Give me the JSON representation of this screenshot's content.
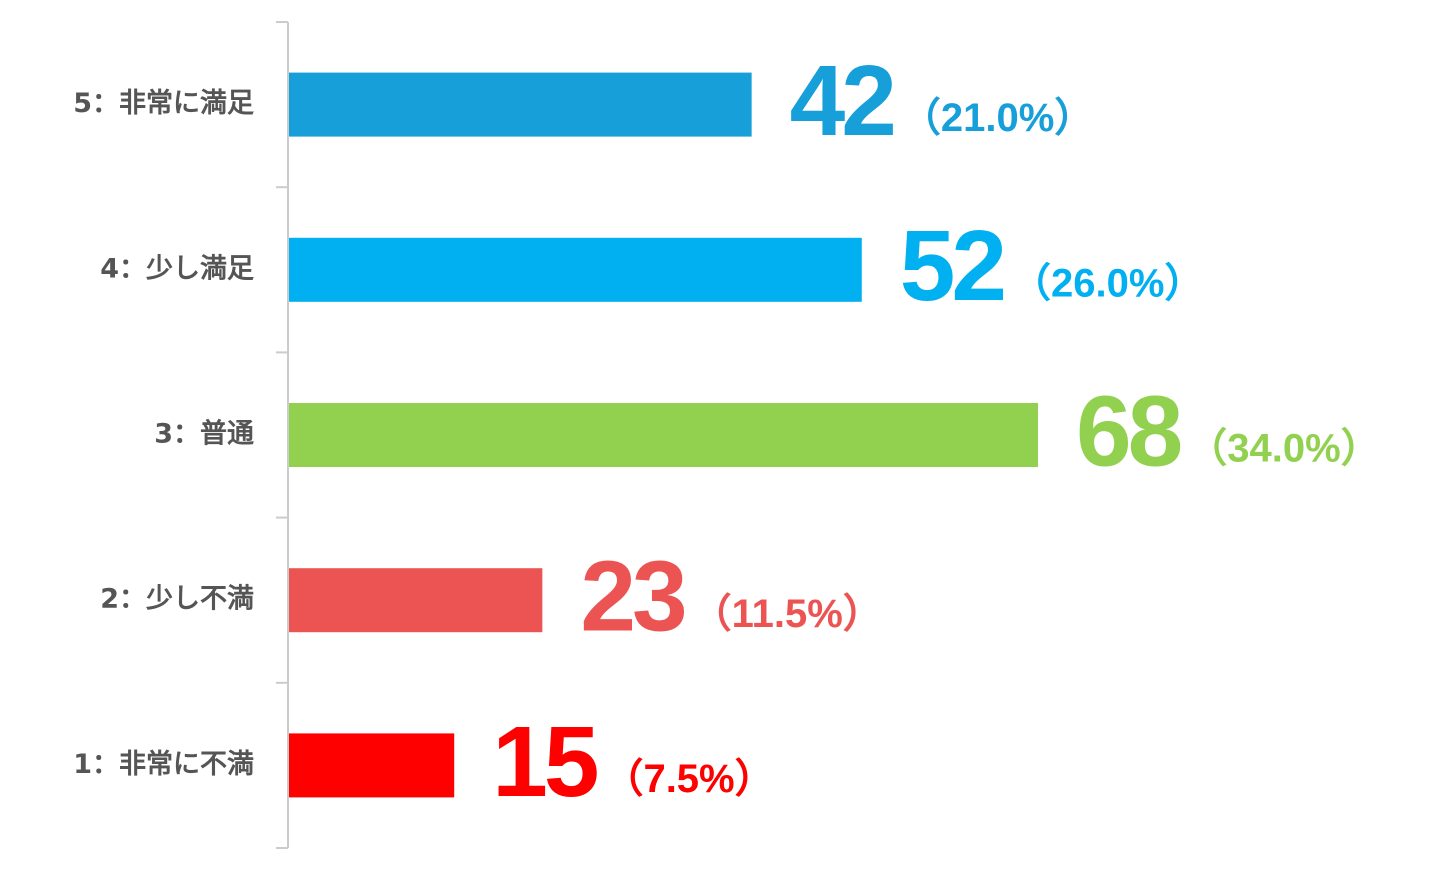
{
  "chart_data": {
    "type": "bar",
    "orientation": "horizontal",
    "categories": [
      "5：非常に満足",
      "4：少し満足",
      "3：普通",
      "2：少し不満",
      "1：非常に不満"
    ],
    "values": [
      42,
      52,
      68,
      23,
      15
    ],
    "percent_labels": [
      "（21.0%）",
      "（26.0%）",
      "（34.0%）",
      "（11.5%）",
      "（7.5%）"
    ],
    "colors": [
      "#169fd8",
      "#00b0f0",
      "#92d050",
      "#ec5454",
      "#ff0000"
    ]
  }
}
